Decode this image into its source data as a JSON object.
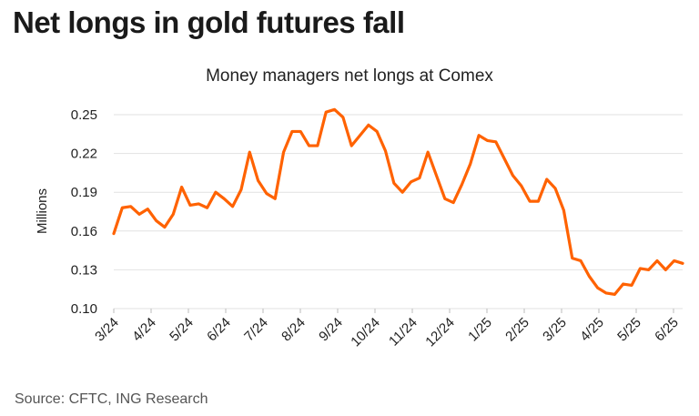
{
  "headline": "Net longs in gold futures fall",
  "source": "Source: CFTC, ING Research",
  "colors": {
    "line": "#ff6200",
    "grid": "#e2e2e2",
    "text": "#222222"
  },
  "chart_data": {
    "type": "line",
    "title": "Money managers net longs at Comex",
    "ylabel": "Millions",
    "xlabel": "",
    "ylim": [
      0.1,
      0.25
    ],
    "yticks": [
      "0.25",
      "0.22",
      "0.19",
      "0.16",
      "0.13",
      "0.10"
    ],
    "xticks": [
      "3/24",
      "4/24",
      "5/24",
      "6/24",
      "7/24",
      "8/24",
      "9/24",
      "10/24",
      "11/24",
      "12/24",
      "1/25",
      "2/25",
      "3/25",
      "4/25",
      "5/25",
      "6/25"
    ],
    "grid": true,
    "legend": "none",
    "series": [
      {
        "values": [
          0.158,
          0.178,
          0.179,
          0.173,
          0.177,
          0.168,
          0.163,
          0.173,
          0.194,
          0.18,
          0.181,
          0.178,
          0.19,
          0.185,
          0.179,
          0.192,
          0.221,
          0.199,
          0.189,
          0.185,
          0.221,
          0.237,
          0.237,
          0.226,
          0.226,
          0.252,
          0.254,
          0.248,
          0.226,
          0.234,
          0.242,
          0.237,
          0.222,
          0.197,
          0.19,
          0.198,
          0.201,
          0.221,
          0.203,
          0.185,
          0.182,
          0.196,
          0.212,
          0.234,
          0.23,
          0.229,
          0.216,
          0.203,
          0.195,
          0.183,
          0.183,
          0.2,
          0.193,
          0.176,
          0.139,
          0.137,
          0.125,
          0.116,
          0.112,
          0.111,
          0.119,
          0.118,
          0.131,
          0.13,
          0.137,
          0.13,
          0.137,
          0.135
        ]
      }
    ]
  }
}
